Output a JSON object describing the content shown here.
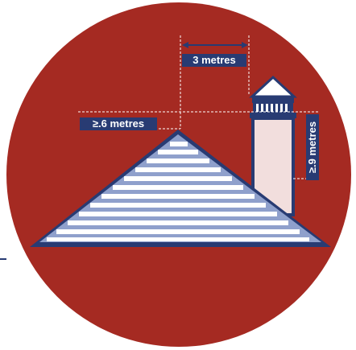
{
  "labels": {
    "horizontal_clearance": "3 metres",
    "roof_height": "≥.6 metres",
    "chimney_height": "≥.9 metres"
  },
  "colors": {
    "background_circle": "#a52a22",
    "label_navy": "#283b73",
    "roof_fill": "#8fa0cc",
    "roof_stripes": "#ffffff",
    "chimney_fill": "#f2dedd",
    "dashed_lines": "#ffffff"
  }
}
